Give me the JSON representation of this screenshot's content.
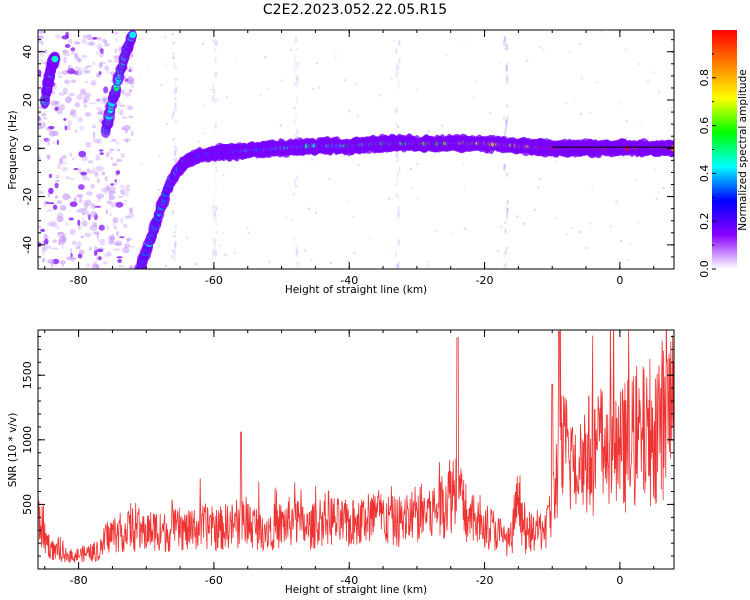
{
  "title": "C2E2.2023.052.22.05.R15",
  "chart_data": [
    {
      "type": "heatmap",
      "xlabel": "Height of straight line (km)",
      "ylabel": "Frequency (Hz)",
      "xlim": [
        -86,
        8
      ],
      "ylim": [
        -50,
        49
      ],
      "x_ticks": [
        -80,
        -60,
        -40,
        -20,
        0
      ],
      "y_ticks": [
        -40,
        -20,
        0,
        20,
        40
      ],
      "colorbar": {
        "label": "Normalized spectral amplitude",
        "range": [
          0.0,
          1.0
        ],
        "ticks": [
          0.0,
          0.2,
          0.4,
          0.6,
          0.8
        ],
        "colormap": [
          "#ffffff",
          "#8a00ff",
          "#0000ff",
          "#00ffff",
          "#00ff00",
          "#ffff00",
          "#ff8000",
          "#ff0000"
        ]
      },
      "series": [
        {
          "values": [
            [
              -85,
              19
            ],
            [
              -84.5,
              27
            ],
            [
              -84,
              34
            ],
            [
              -83.5,
              37
            ]
          ]
        },
        {
          "values": [
            [
              -76,
              7
            ],
            [
              -75.5,
              13
            ],
            [
              -75,
              20
            ],
            [
              -74.5,
              24
            ],
            [
              -74,
              30
            ],
            [
              -73.5,
              35
            ],
            [
              -73,
              40
            ],
            [
              -72.5,
              44
            ],
            [
              -72,
              47
            ]
          ]
        },
        {
          "values": [
            [
              -71,
              -50
            ],
            [
              -70,
              -43
            ],
            [
              -69,
              -35
            ],
            [
              -68,
              -26
            ],
            [
              -67,
              -18
            ],
            [
              -66,
              -12
            ],
            [
              -65,
              -8
            ],
            [
              -64,
              -5
            ],
            [
              -62,
              -3
            ],
            [
              -60,
              -2
            ],
            [
              -55,
              -1
            ],
            [
              -50,
              0
            ],
            [
              -45,
              1
            ],
            [
              -40,
              1
            ],
            [
              -35,
              2
            ],
            [
              -30,
              2
            ],
            [
              -25,
              2
            ],
            [
              -20,
              2
            ],
            [
              -15,
              1
            ],
            [
              -10,
              0
            ],
            [
              -5,
              0
            ],
            [
              0,
              0
            ],
            [
              5,
              0
            ],
            [
              8,
              0
            ]
          ]
        }
      ]
    },
    {
      "type": "line",
      "xlabel": "Height of straight line (km)",
      "ylabel": "SNR (10 * v/v)",
      "xlim": [
        -86,
        8
      ],
      "ylim": [
        0,
        1850
      ],
      "x_ticks": [
        -80,
        -60,
        -40,
        -20,
        0
      ],
      "y_ticks": [
        500,
        1000,
        1500
      ],
      "color": "#ee3333",
      "series": [
        {
          "x": [
            -86,
            -85,
            -84,
            -83,
            -82,
            -81,
            -80,
            -79,
            -78,
            -77,
            -76,
            -75,
            -74,
            -73,
            -72,
            -71,
            -70,
            -69,
            -68,
            -67,
            -66,
            -65,
            -64,
            -63,
            -62,
            -61,
            -60,
            -59,
            -58,
            -57,
            -56,
            -55,
            -54,
            -53,
            -52,
            -51,
            -50,
            -49,
            -48,
            -47,
            -46,
            -45,
            -44,
            -43,
            -42,
            -41,
            -40,
            -39,
            -38,
            -37,
            -36,
            -35,
            -34,
            -33,
            -32,
            -31,
            -30,
            -29,
            -28,
            -27,
            -26,
            -25,
            -24,
            -23,
            -22,
            -21,
            -20,
            -19,
            -18,
            -17,
            -16,
            -15,
            -14,
            -13,
            -12,
            -11,
            -10,
            -9,
            -8,
            -7,
            -6,
            -5,
            -4,
            -3,
            -2,
            -1,
            0,
            1,
            2,
            3,
            4,
            5,
            6,
            7,
            8
          ],
          "y": [
            420,
            250,
            150,
            120,
            110,
            100,
            110,
            120,
            130,
            120,
            240,
            270,
            280,
            290,
            300,
            280,
            290,
            300,
            310,
            280,
            300,
            310,
            290,
            300,
            320,
            330,
            310,
            300,
            340,
            330,
            350,
            360,
            330,
            320,
            310,
            330,
            340,
            360,
            380,
            330,
            310,
            340,
            380,
            400,
            360,
            350,
            340,
            360,
            380,
            400,
            420,
            390,
            370,
            360,
            380,
            400,
            420,
            440,
            430,
            470,
            520,
            600,
            650,
            440,
            380,
            360,
            340,
            320,
            280,
            230,
            200,
            560,
            250,
            280,
            300,
            320,
            450,
            880,
            900,
            860,
            850,
            880,
            900,
            920,
            950,
            940,
            900,
            960,
            980,
            1000,
            1050,
            1100,
            1150,
            1200,
            1250
          ]
        }
      ]
    }
  ]
}
